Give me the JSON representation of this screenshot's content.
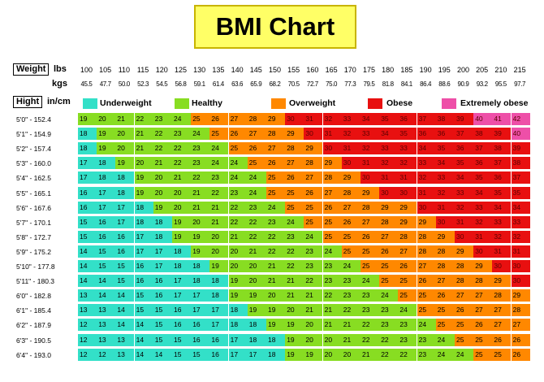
{
  "title": "BMI Chart",
  "weight_label": "Weight",
  "lbs_label": "lbs",
  "kgs_label": "kgs",
  "height_label": "Hight",
  "in_cm_label": "in/cm",
  "colors": {
    "underweight": "#33e0c8",
    "healthy": "#88dd22",
    "overweight": "#ff8800",
    "obese": "#e81010",
    "extremely_obese": "#ee4fa8"
  },
  "chart_data": {
    "type": "heatmap",
    "title": "BMI Chart",
    "lbs": [
      "100",
      "105",
      "110",
      "115",
      "120",
      "125",
      "130",
      "135",
      "140",
      "145",
      "150",
      "155",
      "160",
      "165",
      "170",
      "175",
      "180",
      "185",
      "190",
      "195",
      "200",
      "205",
      "210",
      "215"
    ],
    "kgs": [
      "45.5",
      "47.7",
      "50.0",
      "52.3",
      "54.5",
      "56.8",
      "59.1",
      "61.4",
      "63.6",
      "65.9",
      "68.2",
      "70.5",
      "72.7",
      "75.0",
      "77.3",
      "79.5",
      "81.8",
      "84.1",
      "86.4",
      "88.6",
      "90.9",
      "93.2",
      "95.5",
      "97.7"
    ],
    "heights": [
      "5'0\" - 152.4",
      "5'1\" - 154.9",
      "5'2\" - 157.4",
      "5'3\" - 160.0",
      "5'4\" - 162.5",
      "5'5\" - 165.1",
      "5'6\" - 167.6",
      "5'7\" - 170.1",
      "5'8\" - 172.7",
      "5'9\" - 175.2",
      "5'10\" - 177.8",
      "5'11\" - 180.3",
      "6'0\" - 182.8",
      "6'1\" - 185.4",
      "6'2\" - 187.9",
      "6'3\" - 190.5",
      "6'4\" - 193.0"
    ],
    "categories": [
      {
        "key": "underweight",
        "label": "Underweight"
      },
      {
        "key": "healthy",
        "label": "Healthy"
      },
      {
        "key": "overweight",
        "label": "Overweight"
      },
      {
        "key": "obese",
        "label": "Obese"
      },
      {
        "key": "extremely_obese",
        "label": "Extremely obese"
      }
    ],
    "values": [
      [
        19,
        20,
        21,
        22,
        23,
        24,
        25,
        26,
        27,
        28,
        29,
        30,
        31,
        32,
        33,
        34,
        35,
        36,
        37,
        38,
        39,
        40,
        41,
        42
      ],
      [
        18,
        19,
        20,
        21,
        22,
        23,
        24,
        25,
        26,
        27,
        28,
        29,
        30,
        31,
        32,
        33,
        34,
        35,
        36,
        36,
        37,
        38,
        39,
        40
      ],
      [
        18,
        19,
        20,
        21,
        22,
        22,
        23,
        24,
        25,
        26,
        27,
        28,
        29,
        30,
        31,
        32,
        33,
        33,
        34,
        35,
        36,
        37,
        38,
        39
      ],
      [
        17,
        18,
        19,
        20,
        21,
        22,
        23,
        24,
        24,
        25,
        26,
        27,
        28,
        29,
        30,
        31,
        32,
        32,
        33,
        34,
        35,
        36,
        37,
        38
      ],
      [
        17,
        18,
        18,
        19,
        20,
        21,
        22,
        23,
        24,
        24,
        25,
        26,
        27,
        28,
        29,
        30,
        31,
        31,
        32,
        33,
        34,
        35,
        36,
        37
      ],
      [
        16,
        17,
        18,
        19,
        20,
        20,
        21,
        22,
        23,
        24,
        25,
        25,
        26,
        27,
        28,
        29,
        30,
        30,
        31,
        32,
        33,
        34,
        35,
        35
      ],
      [
        16,
        17,
        17,
        18,
        19,
        20,
        21,
        21,
        22,
        23,
        24,
        25,
        25,
        26,
        27,
        28,
        29,
        29,
        30,
        31,
        32,
        33,
        34,
        34
      ],
      [
        15,
        16,
        17,
        18,
        18,
        19,
        20,
        21,
        22,
        22,
        23,
        24,
        25,
        25,
        26,
        27,
        28,
        29,
        29,
        30,
        31,
        32,
        33,
        33
      ],
      [
        15,
        16,
        16,
        17,
        18,
        19,
        19,
        20,
        21,
        22,
        22,
        23,
        24,
        25,
        25,
        26,
        27,
        28,
        28,
        29,
        30,
        31,
        32,
        32
      ],
      [
        14,
        15,
        16,
        17,
        17,
        18,
        19,
        20,
        20,
        21,
        22,
        22,
        23,
        24,
        25,
        25,
        26,
        27,
        28,
        28,
        29,
        30,
        31,
        31
      ],
      [
        14,
        15,
        15,
        16,
        17,
        18,
        18,
        19,
        20,
        20,
        21,
        22,
        23,
        23,
        24,
        25,
        25,
        26,
        27,
        28,
        28,
        29,
        30,
        30
      ],
      [
        14,
        14,
        15,
        16,
        16,
        17,
        18,
        18,
        19,
        20,
        21,
        21,
        22,
        23,
        23,
        24,
        25,
        25,
        26,
        27,
        28,
        28,
        29,
        30
      ],
      [
        13,
        14,
        14,
        15,
        16,
        17,
        17,
        18,
        19,
        19,
        20,
        21,
        21,
        22,
        23,
        23,
        24,
        25,
        25,
        26,
        27,
        27,
        28,
        29
      ],
      [
        13,
        13,
        14,
        15,
        15,
        16,
        17,
        17,
        18,
        19,
        19,
        20,
        21,
        21,
        22,
        23,
        23,
        24,
        25,
        25,
        26,
        27,
        27,
        28
      ],
      [
        12,
        13,
        14,
        14,
        15,
        16,
        16,
        17,
        18,
        18,
        19,
        19,
        20,
        21,
        21,
        22,
        23,
        23,
        24,
        25,
        25,
        26,
        27,
        27
      ],
      [
        12,
        13,
        13,
        14,
        15,
        15,
        16,
        16,
        17,
        18,
        18,
        19,
        20,
        20,
        21,
        22,
        22,
        23,
        23,
        24,
        25,
        25,
        26,
        26
      ],
      [
        12,
        12,
        13,
        14,
        14,
        15,
        15,
        16,
        17,
        17,
        18,
        19,
        19,
        20,
        20,
        21,
        22,
        22,
        23,
        24,
        24,
        25,
        25,
        26
      ]
    ],
    "thresholds": {
      "underweight_max": 18,
      "healthy_max": 24,
      "overweight_max": 29,
      "obese_max": 39
    }
  }
}
